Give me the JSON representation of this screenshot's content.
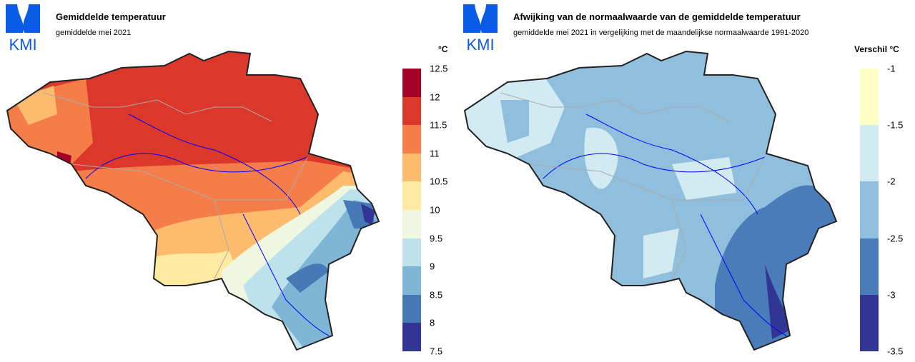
{
  "logo_text": "KMI",
  "left": {
    "title": "Gemiddelde temperatuur",
    "subtitle": "gemiddelde mei 2021",
    "unit": "°C",
    "legend": {
      "ticks": [
        "12.5",
        "12",
        "11.5",
        "11",
        "10.5",
        "10",
        "9.5",
        "9",
        "8.5",
        "8",
        "7.5"
      ],
      "bins": [
        {
          "range": [
            12,
            12.5
          ],
          "color": "#a50026"
        },
        {
          "range": [
            11.5,
            12
          ],
          "color": "#db382b"
        },
        {
          "range": [
            11,
            11.5
          ],
          "color": "#f47d4a"
        },
        {
          "range": [
            10.5,
            11
          ],
          "color": "#fdbb6e"
        },
        {
          "range": [
            10,
            10.5
          ],
          "color": "#feeba1"
        },
        {
          "range": [
            9.5,
            10
          ],
          "color": "#eff7e1"
        },
        {
          "range": [
            9,
            9.5
          ],
          "color": "#bde2ec"
        },
        {
          "range": [
            8.5,
            9
          ],
          "color": "#7fb6d5"
        },
        {
          "range": [
            8,
            8.5
          ],
          "color": "#4879b7"
        },
        {
          "range": [
            7.5,
            8
          ],
          "color": "#313695"
        }
      ]
    }
  },
  "right": {
    "title": "Afwijking van de normaalwaarde van de gemiddelde temperatuur",
    "subtitle": "gemiddelde mei 2021 in vergelijking met de maandelijkse normaalwaarde 1991-2020",
    "unit": "Verschil °C",
    "legend": {
      "ticks": [
        "-1",
        "-1.5",
        "-2",
        "-2.5",
        "-3",
        "-3.5"
      ],
      "bins": [
        {
          "range": [
            -1.5,
            -1
          ],
          "color": "#ffffc6"
        },
        {
          "range": [
            -2,
            -1.5
          ],
          "color": "#d2ebf2"
        },
        {
          "range": [
            -2.5,
            -2
          ],
          "color": "#8fbfdc"
        },
        {
          "range": [
            -3,
            -2.5
          ],
          "color": "#4a7cb9"
        },
        {
          "range": [
            -3.5,
            -3
          ],
          "color": "#313695"
        }
      ]
    }
  }
}
